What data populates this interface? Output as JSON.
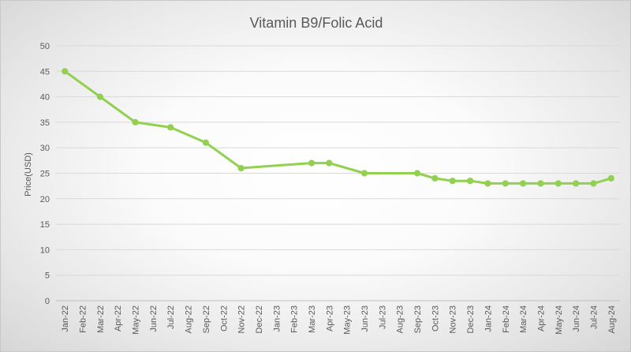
{
  "chart_data": {
    "type": "line",
    "title": "Vitamin B9/Folic Acid",
    "xlabel": "",
    "ylabel": "Price(USD)",
    "ylim": [
      0,
      50
    ],
    "yticks": [
      0,
      5,
      10,
      15,
      20,
      25,
      30,
      35,
      40,
      45,
      50
    ],
    "grid": true,
    "categories": [
      "Jan-22",
      "Feb-22",
      "Mar-22",
      "Apr-22",
      "May-22",
      "Jun-22",
      "Jul-22",
      "Aug-22",
      "Sep-22",
      "Oct-22",
      "Nov-22",
      "Dec-22",
      "Jan-23",
      "Feb-23",
      "Mar-23",
      "Apr-23",
      "May-23",
      "Jun-23",
      "Jul-23",
      "Aug-23",
      "Sep-23",
      "Oct-23",
      "Nov-23",
      "Dec-23",
      "Jan-24",
      "Feb-24",
      "Mar-24",
      "Apr-24",
      "May-24",
      "Jun-24",
      "Jul-24",
      "Aug-24"
    ],
    "series": [
      {
        "name": "Vitamin B9/Folic Acid",
        "color": "#92d050",
        "points": [
          {
            "category": "Jan-22",
            "value": 45
          },
          {
            "category": "Mar-22",
            "value": 40
          },
          {
            "category": "May-22",
            "value": 35
          },
          {
            "category": "Jul-22",
            "value": 34
          },
          {
            "category": "Sep-22",
            "value": 31
          },
          {
            "category": "Nov-22",
            "value": 26
          },
          {
            "category": "Mar-23",
            "value": 27
          },
          {
            "category": "Apr-23",
            "value": 27
          },
          {
            "category": "Jun-23",
            "value": 25
          },
          {
            "category": "Sep-23",
            "value": 25
          },
          {
            "category": "Oct-23",
            "value": 24
          },
          {
            "category": "Nov-23",
            "value": 23.5
          },
          {
            "category": "Dec-23",
            "value": 23.5
          },
          {
            "category": "Jan-24",
            "value": 23
          },
          {
            "category": "Feb-24",
            "value": 23
          },
          {
            "category": "Mar-24",
            "value": 23
          },
          {
            "category": "Apr-24",
            "value": 23
          },
          {
            "category": "May-24",
            "value": 23
          },
          {
            "category": "Jun-24",
            "value": 23
          },
          {
            "category": "Jul-24",
            "value": 23
          },
          {
            "category": "Aug-24",
            "value": 24
          }
        ]
      }
    ]
  }
}
